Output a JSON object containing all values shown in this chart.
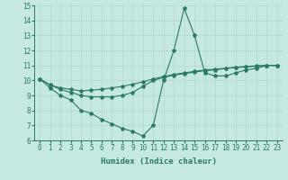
{
  "xlabel": "Humidex (Indice chaleur)",
  "xlim": [
    -0.5,
    23.5
  ],
  "ylim": [
    6,
    15
  ],
  "xticks": [
    0,
    1,
    2,
    3,
    4,
    5,
    6,
    7,
    8,
    9,
    10,
    11,
    12,
    13,
    14,
    15,
    16,
    17,
    18,
    19,
    20,
    21,
    22,
    23
  ],
  "yticks": [
    6,
    7,
    8,
    9,
    10,
    11,
    12,
    13,
    14,
    15
  ],
  "background_color": "#c5e8e0",
  "grid_color": "#b0d8d0",
  "line_color": "#2a7a65",
  "line1_x": [
    0,
    1,
    2,
    3,
    4,
    5,
    6,
    7,
    8,
    9,
    10,
    11,
    12,
    13,
    14,
    15,
    16,
    17,
    18,
    19,
    20,
    21,
    22,
    23
  ],
  "line1_y": [
    10.1,
    9.5,
    9.0,
    8.7,
    8.0,
    7.8,
    7.4,
    7.1,
    6.8,
    6.6,
    6.3,
    7.0,
    10.0,
    12.0,
    14.8,
    13.0,
    10.5,
    10.3,
    10.3,
    10.5,
    10.7,
    10.8,
    11.0,
    11.0
  ],
  "line2_x": [
    0,
    1,
    2,
    3,
    4,
    5,
    6,
    7,
    8,
    9,
    10,
    11,
    12,
    13,
    14,
    15,
    16,
    17,
    18,
    19,
    20,
    21,
    22,
    23
  ],
  "line2_y": [
    10.1,
    9.7,
    9.4,
    9.2,
    9.0,
    8.9,
    8.9,
    8.9,
    9.0,
    9.2,
    9.6,
    10.0,
    10.2,
    10.35,
    10.45,
    10.55,
    10.65,
    10.7,
    10.8,
    10.85,
    10.9,
    10.95,
    11.0,
    11.0
  ],
  "line3_x": [
    0,
    1,
    2,
    3,
    4,
    5,
    6,
    7,
    8,
    9,
    10,
    11,
    12,
    13,
    14,
    15,
    16,
    17,
    18,
    19,
    20,
    21,
    22,
    23
  ],
  "line3_y": [
    10.1,
    9.7,
    9.5,
    9.4,
    9.3,
    9.35,
    9.4,
    9.5,
    9.6,
    9.75,
    9.9,
    10.1,
    10.25,
    10.4,
    10.5,
    10.6,
    10.7,
    10.75,
    10.8,
    10.88,
    10.93,
    10.97,
    11.0,
    11.0
  ]
}
